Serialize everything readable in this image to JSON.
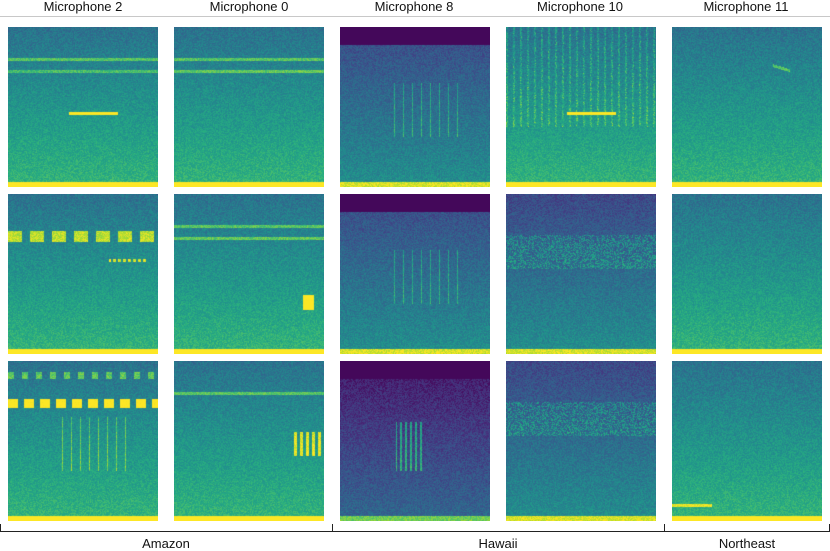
{
  "columns": [
    {
      "title": "Microphone 2"
    },
    {
      "title": "Microphone 0"
    },
    {
      "title": "Microphone 8"
    },
    {
      "title": "Microphone 10"
    },
    {
      "title": "Microphone 11"
    }
  ],
  "groups": [
    {
      "label": "Amazon"
    },
    {
      "label": "Hawaii"
    },
    {
      "label": "Northeast"
    }
  ],
  "colormap": "viridis",
  "spectrograms": [
    {
      "id": "r0c0",
      "tone": "mid",
      "events": [
        "band-top",
        "band-mid",
        "streak-yellow"
      ]
    },
    {
      "id": "r0c1",
      "tone": "mid",
      "events": [
        "bands-top"
      ]
    },
    {
      "id": "r0c2",
      "tone": "dark",
      "events": [
        "dark-top",
        "ticks"
      ]
    },
    {
      "id": "r0c3",
      "tone": "mid",
      "events": [
        "busy-top",
        "streak-yellow"
      ]
    },
    {
      "id": "r0c4",
      "tone": "mid",
      "events": [
        "chirp"
      ]
    },
    {
      "id": "r1c0",
      "tone": "mid",
      "events": [
        "beads-top",
        "dashes"
      ]
    },
    {
      "id": "r1c1",
      "tone": "mid",
      "events": [
        "bands-top",
        "blip"
      ]
    },
    {
      "id": "r1c2",
      "tone": "dark",
      "events": [
        "dark-top",
        "ticks"
      ]
    },
    {
      "id": "r1c3",
      "tone": "dark",
      "events": [
        "cloud"
      ]
    },
    {
      "id": "r1c4",
      "tone": "mid",
      "events": []
    },
    {
      "id": "r2c0",
      "tone": "mid",
      "events": [
        "dots-top",
        "band-yellow",
        "ticks"
      ]
    },
    {
      "id": "r2c1",
      "tone": "mid",
      "events": [
        "band-mid",
        "blip-cluster"
      ]
    },
    {
      "id": "r2c2",
      "tone": "darkest",
      "events": [
        "dark-top",
        "burst"
      ]
    },
    {
      "id": "r2c3",
      "tone": "dark",
      "events": [
        "cloud"
      ]
    },
    {
      "id": "r2c4",
      "tone": "mid",
      "events": [
        "low-streak"
      ]
    }
  ]
}
